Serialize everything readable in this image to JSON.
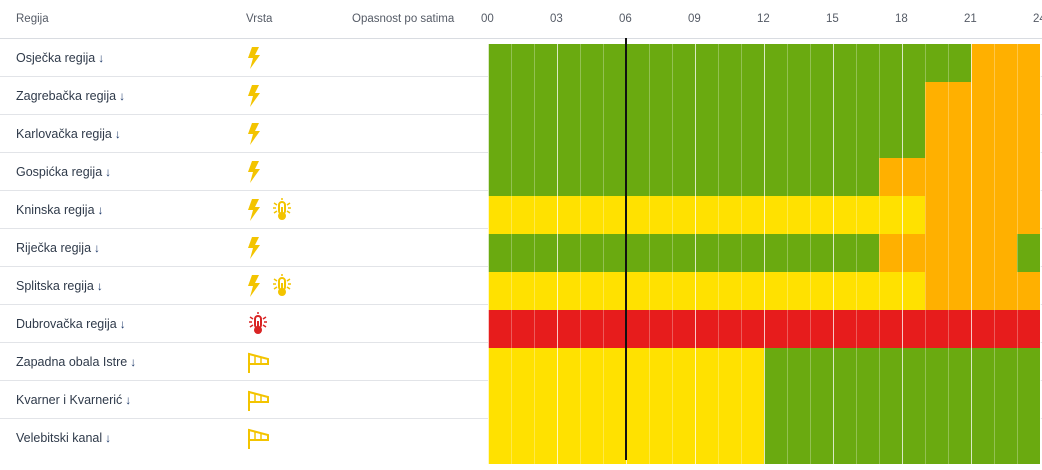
{
  "header": {
    "col_region": "Regija",
    "col_type": "Vrsta",
    "col_danger": "Opasnost po satima",
    "hours": [
      "00",
      "03",
      "06",
      "09",
      "12",
      "15",
      "18",
      "21",
      "24"
    ]
  },
  "colors": {
    "green": "#6aaa10",
    "yellow": "#ffe100",
    "orange": "#ffb000",
    "red": "#e71c1c",
    "icon_yellow": "#f3c400",
    "icon_red": "#d92424"
  },
  "current_hour": 6,
  "rows": [
    {
      "region": "Osječka regija",
      "arrow": "↓",
      "types": [
        "lightning-icon"
      ],
      "levels": [
        [
          0,
          21,
          "green"
        ],
        [
          21,
          24,
          "orange"
        ]
      ]
    },
    {
      "region": "Zagrebačka regija",
      "arrow": "↓",
      "types": [
        "lightning-icon"
      ],
      "levels": [
        [
          0,
          19,
          "green"
        ],
        [
          19,
          24,
          "orange"
        ]
      ]
    },
    {
      "region": "Karlovačka regija",
      "arrow": "↓",
      "types": [
        "lightning-icon"
      ],
      "levels": [
        [
          0,
          19,
          "green"
        ],
        [
          19,
          24,
          "orange"
        ]
      ]
    },
    {
      "region": "Gospićka regija",
      "arrow": "↓",
      "types": [
        "lightning-icon"
      ],
      "levels": [
        [
          0,
          17,
          "green"
        ],
        [
          17,
          24,
          "orange"
        ]
      ]
    },
    {
      "region": "Kninska regija",
      "arrow": "↓",
      "types": [
        "lightning-icon",
        "heat-thermometer-icon"
      ],
      "levels": [
        [
          0,
          19,
          "yellow"
        ],
        [
          19,
          24,
          "orange"
        ]
      ]
    },
    {
      "region": "Riječka regija",
      "arrow": "↓",
      "types": [
        "lightning-icon"
      ],
      "levels": [
        [
          0,
          17,
          "green"
        ],
        [
          17,
          23,
          "orange"
        ],
        [
          23,
          24,
          "green"
        ]
      ]
    },
    {
      "region": "Splitska regija",
      "arrow": "↓",
      "types": [
        "lightning-icon",
        "heat-thermometer-icon"
      ],
      "levels": [
        [
          0,
          19,
          "yellow"
        ],
        [
          19,
          24,
          "orange"
        ]
      ]
    },
    {
      "region": "Dubrovačka regija",
      "arrow": "↓",
      "types": [
        "heat-thermometer-red-icon"
      ],
      "levels": [
        [
          0,
          24,
          "red"
        ]
      ]
    },
    {
      "region": "Zapadna obala Istre",
      "arrow": "↓",
      "types": [
        "windsock-icon"
      ],
      "levels": [
        [
          0,
          12,
          "yellow"
        ],
        [
          12,
          24,
          "green"
        ]
      ]
    },
    {
      "region": "Kvarner i Kvarnerić",
      "arrow": "↓",
      "types": [
        "windsock-icon"
      ],
      "levels": [
        [
          0,
          12,
          "yellow"
        ],
        [
          12,
          24,
          "green"
        ]
      ]
    },
    {
      "region": "Velebitski kanal",
      "arrow": "↓",
      "types": [
        "windsock-icon"
      ],
      "levels": [
        [
          0,
          12,
          "yellow"
        ],
        [
          12,
          24,
          "green"
        ]
      ]
    }
  ]
}
